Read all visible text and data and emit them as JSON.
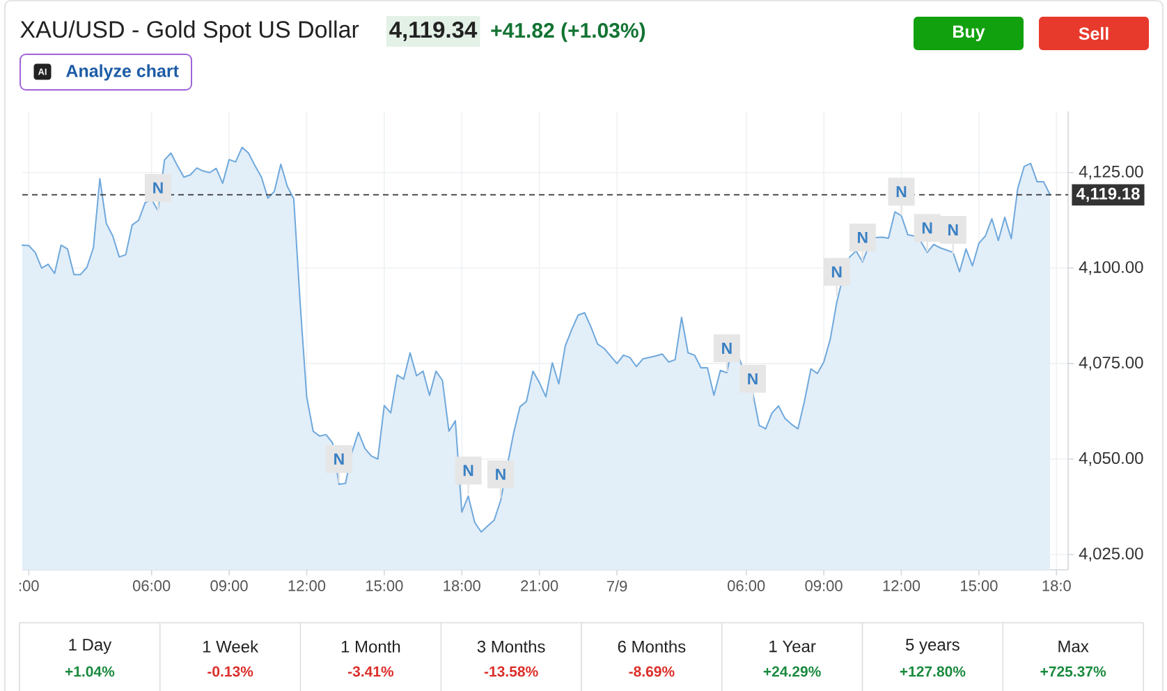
{
  "chart_data": [
    {
      "type": "area",
      "title": "XAU/USD - Gold Spot US Dollar",
      "subtitle": "4,119.34",
      "annotations": [
        "+41.82 (+1.03%)",
        "AI",
        "Analyze chart",
        "Buy",
        "Sell"
      ],
      "categories": [
        null,
        ":00",
        null,
        null,
        null,
        null,
        null,
        null,
        null,
        null,
        null,
        null,
        null,
        null,
        null,
        null,
        null,
        null,
        null,
        null,
        "06:00",
        null,
        null,
        null,
        null,
        null,
        null,
        null,
        null,
        null,
        null,
        null,
        "09:00",
        null,
        null,
        null,
        null,
        null,
        null,
        null,
        null,
        null,
        null,
        null,
        "12:00",
        null,
        null,
        null,
        null,
        null,
        null,
        null,
        null,
        null,
        null,
        null,
        "15:00",
        null,
        null,
        null,
        null,
        null,
        null,
        null,
        null,
        null,
        null,
        null,
        "18:00",
        null,
        null,
        null,
        null,
        null,
        null,
        null,
        null,
        null,
        null,
        null,
        "21:00",
        null,
        null,
        null,
        null,
        null,
        null,
        null,
        null,
        null,
        null,
        null,
        "7/9",
        null,
        null,
        null,
        null,
        null,
        null,
        null,
        null,
        null,
        null,
        null,
        null,
        null,
        null,
        null,
        null,
        null,
        null,
        null,
        "06:00",
        null,
        null,
        null,
        null,
        null,
        null,
        null,
        null,
        null,
        null,
        null,
        "09:00",
        null,
        null,
        null,
        null,
        null,
        null,
        null,
        null,
        null,
        null,
        null,
        "12:00",
        null,
        null,
        null,
        null,
        null,
        null,
        null,
        null,
        null,
        null,
        null,
        "15:00",
        null,
        null,
        null,
        null,
        null,
        null,
        null,
        null,
        null,
        null,
        null,
        "18:0"
      ],
      "series": [
        {
          "color": "#6FA8DC",
          "values": [
            4106.0,
            4105.9,
            4104.1,
            4100.0,
            4101.0,
            4098.6,
            4106.0,
            4105.0,
            4098.3,
            4098.3,
            4100.2,
            4105.3,
            4123.4,
            4111.7,
            4108.4,
            4102.9,
            4103.5,
            4111.3,
            4112.5,
            4117.1,
            4118.0,
            4115.0,
            4128.3,
            4130.1,
            4126.8,
            4123.8,
            4124.4,
            4126.2,
            4125.4,
            4125.0,
            4126.1,
            4122.2,
            4128.4,
            4127.8,
            4131.6,
            4130.1,
            4126.8,
            4123.8,
            4118.3,
            4120.1,
            4127.2,
            4121.4,
            4118.1,
            4090.5,
            4066.3,
            4057.3,
            4056.0,
            4056.4,
            4054.2,
            4043.4,
            4043.6,
            4051.8,
            4057.0,
            4052.8,
            4050.8,
            4050.0,
            4064.0,
            4062.1,
            4072.0,
            4070.9,
            4077.8,
            4071.8,
            4073.0,
            4066.7,
            4073.0,
            4070.6,
            4057.3,
            4060.0,
            4036.1,
            4040.3,
            4033.4,
            4030.9,
            4032.5,
            4034.0,
            4039.1,
            4048.0,
            4056.7,
            4063.7,
            4065.1,
            4073.0,
            4070.0,
            4066.3,
            4075.2,
            4069.7,
            4079.6,
            4083.9,
            4087.7,
            4088.3,
            4084.5,
            4080.1,
            4079.0,
            4077.0,
            4075.0,
            4077.2,
            4076.6,
            4074.2,
            4076.2,
            4076.6,
            4077.0,
            4077.5,
            4075.4,
            4076.0,
            4087.1,
            4077.8,
            4077.2,
            4073.9,
            4073.9,
            4066.7,
            4073.2,
            4072.6,
            4081.0,
            4076.0,
            4071.0,
            4067.5,
            4058.8,
            4057.9,
            4062.1,
            4063.9,
            4060.6,
            4059.1,
            4057.9,
            4065.1,
            4073.6,
            4072.4,
            4075.4,
            4081.4,
            4091.0,
            4098.0,
            4102.9,
            4104.5,
            4101.6,
            4106.0,
            4108.0,
            4108.1,
            4107.8,
            4114.7,
            4113.7,
            4108.7,
            4108.4,
            4107.0,
            4104.1,
            4106.2,
            4105.3,
            4104.7,
            4104.1,
            4099.0,
            4105.0,
            4100.6,
            4106.5,
            4108.4,
            4112.9,
            4107.2,
            4113.3,
            4107.7,
            4120.8,
            4126.6,
            4127.4,
            4122.6,
            4122.6,
            4119.2,
            null
          ]
        },
        {
          "type": "scatter",
          "marker": "square",
          "color": "#E6E6E6",
          "values": [
            null,
            null,
            null,
            null,
            null,
            null,
            null,
            null,
            null,
            null,
            null,
            null,
            null,
            null,
            null,
            null,
            null,
            null,
            null,
            null,
            null,
            4121,
            null,
            null,
            null,
            null,
            null,
            null,
            null,
            null,
            null,
            null,
            null,
            null,
            null,
            null,
            null,
            null,
            null,
            null,
            null,
            null,
            null,
            null,
            null,
            null,
            null,
            null,
            null,
            4050,
            null,
            null,
            null,
            null,
            null,
            null,
            null,
            null,
            null,
            null,
            null,
            null,
            null,
            null,
            null,
            null,
            null,
            null,
            null,
            4047,
            null,
            null,
            null,
            null,
            4046,
            null,
            null,
            null,
            null,
            null,
            null,
            null,
            null,
            null,
            null,
            null,
            null,
            null,
            null,
            null,
            null,
            null,
            null,
            null,
            null,
            null,
            null,
            null,
            null,
            null,
            null,
            null,
            null,
            null,
            null,
            null,
            null,
            null,
            null,
            4079,
            null,
            null,
            null,
            4071,
            null,
            null,
            null,
            null,
            null,
            null,
            null,
            null,
            null,
            null,
            null,
            null,
            4099,
            null,
            null,
            null,
            4108,
            null,
            null,
            null,
            null,
            null,
            4120,
            null,
            null,
            null,
            4110.5,
            null,
            null,
            null,
            4110,
            null,
            null,
            null,
            null,
            null,
            null,
            null,
            null,
            null,
            null,
            null,
            null,
            null,
            null,
            null,
            null
          ],
          "value_labels": [
            null,
            null,
            null,
            null,
            null,
            null,
            null,
            null,
            null,
            null,
            null,
            null,
            null,
            null,
            null,
            null,
            null,
            null,
            null,
            null,
            null,
            "N",
            null,
            null,
            null,
            null,
            null,
            null,
            null,
            null,
            null,
            null,
            null,
            null,
            null,
            null,
            null,
            null,
            null,
            null,
            null,
            null,
            null,
            null,
            null,
            null,
            null,
            null,
            null,
            "N",
            null,
            null,
            null,
            null,
            null,
            null,
            null,
            null,
            null,
            null,
            null,
            null,
            null,
            null,
            null,
            null,
            null,
            null,
            null,
            "N",
            null,
            null,
            null,
            null,
            "N",
            null,
            null,
            null,
            null,
            null,
            null,
            null,
            null,
            null,
            null,
            null,
            null,
            null,
            null,
            null,
            null,
            null,
            null,
            null,
            null,
            null,
            null,
            null,
            null,
            null,
            null,
            null,
            null,
            null,
            null,
            null,
            null,
            null,
            null,
            "N",
            null,
            null,
            null,
            "N",
            null,
            null,
            null,
            null,
            null,
            null,
            null,
            null,
            null,
            null,
            null,
            null,
            "N",
            null,
            null,
            null,
            "N",
            null,
            null,
            null,
            null,
            null,
            "N",
            null,
            null,
            null,
            "N",
            null,
            null,
            null,
            "N",
            null,
            null,
            null,
            null,
            null,
            null,
            null,
            null,
            null,
            null,
            null,
            null,
            null,
            null,
            null,
            null
          ]
        }
      ],
      "ylim": [
        4021,
        4141
      ],
      "yticks": [
        {
          "value": 4025,
          "label": "4,025.00"
        },
        {
          "value": 4050,
          "label": "4,050.00"
        },
        {
          "value": 4075,
          "label": "4,075.00"
        },
        {
          "value": 4100,
          "label": "4,100.00"
        },
        {
          "value": 4125,
          "label": "4,125.00"
        }
      ],
      "ref_lines": [
        {
          "axis": "y",
          "value": 4119.18,
          "label": "4,119.18",
          "color": "#333333",
          "line_style": "dashed"
        }
      ],
      "grid": true
    },
    {
      "type": "other",
      "categories": [
        "1 Day",
        "1 Week",
        "1 Month",
        "3 Months",
        "6 Months",
        "1 Year",
        "5 years",
        "Max"
      ],
      "value_labels": [
        "+1.04%",
        "-0.13%",
        "-3.41%",
        "-13.58%",
        "-8.69%",
        "+24.29%",
        "+127.80%",
        "+725.37%"
      ],
      "colors": [
        "#1A8A3E",
        "#DB2F2A",
        "#DB2F2A",
        "#DB2F2A",
        "#DB2F2A",
        "#1A8A3E",
        "#1A8A3E",
        "#1A8A3E"
      ]
    }
  ]
}
